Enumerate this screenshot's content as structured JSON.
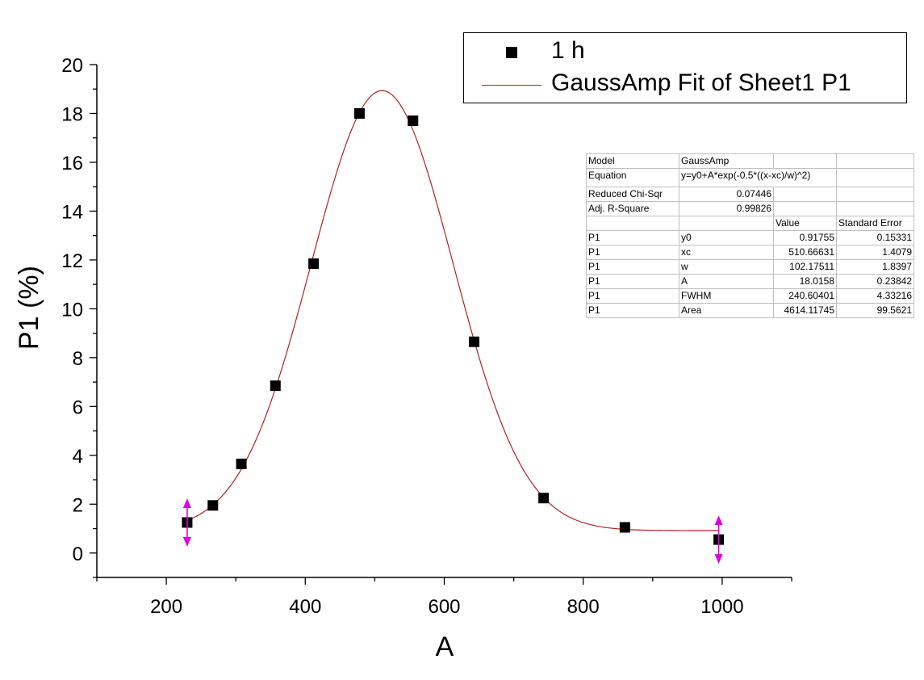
{
  "chart_data": {
    "type": "scatter",
    "xlabel": "A",
    "ylabel": "P1 (%)",
    "xlim": [
      100,
      1100
    ],
    "ylim": [
      -1,
      20
    ],
    "x_ticks": [
      200,
      400,
      600,
      800,
      1000
    ],
    "y_ticks": [
      0,
      2,
      4,
      6,
      8,
      10,
      12,
      14,
      16,
      18,
      20
    ],
    "grid": false,
    "legend_position": "top-right",
    "series": [
      {
        "name": "1 h",
        "type": "scatter",
        "marker": "square",
        "color": "#000000",
        "x": [
          230,
          267,
          308,
          357,
          412,
          478,
          555,
          643,
          743,
          860,
          995
        ],
        "y": [
          1.25,
          1.95,
          3.65,
          6.85,
          11.85,
          18.0,
          17.7,
          8.65,
          2.25,
          1.05,
          0.55
        ]
      },
      {
        "name": "GaussAmp Fit of Sheet1 P1",
        "type": "line",
        "color": "#b22222",
        "model": "gaussamp",
        "x_range": [
          230,
          995
        ],
        "params": {
          "y0": 0.91755,
          "xc": 510.66631,
          "w": 102.17511,
          "A": 18.0158
        }
      }
    ],
    "annotations": [
      {
        "type": "range-handle",
        "x": 230,
        "y": 1.25,
        "color": "#e000e0"
      },
      {
        "type": "range-handle",
        "x": 995,
        "y": 0.55,
        "color": "#e000e0"
      }
    ],
    "fit_table": {
      "model_label": "Model",
      "model_value": "GaussAmp",
      "equation_label": "Equation",
      "equation_value": "y=y0+A*exp(-0.5*((x-xc)/w)^2)",
      "chisq_label": "Reduced Chi-Sqr",
      "chisq_value": "0.07446",
      "r2_label": "Adj. R-Square",
      "r2_value": "0.99826",
      "value_header": "Value",
      "error_header": "Standard Error",
      "params": [
        {
          "group": "P1",
          "name": "y0",
          "value": "0.91755",
          "error": "0.15331"
        },
        {
          "group": "P1",
          "name": "xc",
          "value": "510.66631",
          "error": "1.4079"
        },
        {
          "group": "P1",
          "name": "w",
          "value": "102.17511",
          "error": "1.8397"
        },
        {
          "group": "P1",
          "name": "A",
          "value": "18.0158",
          "error": "0.23842"
        },
        {
          "group": "P1",
          "name": "FWHM",
          "value": "240.60401",
          "error": "4.33216"
        },
        {
          "group": "P1",
          "name": "Area",
          "value": "4614.11745",
          "error": "99.5621"
        }
      ]
    }
  }
}
